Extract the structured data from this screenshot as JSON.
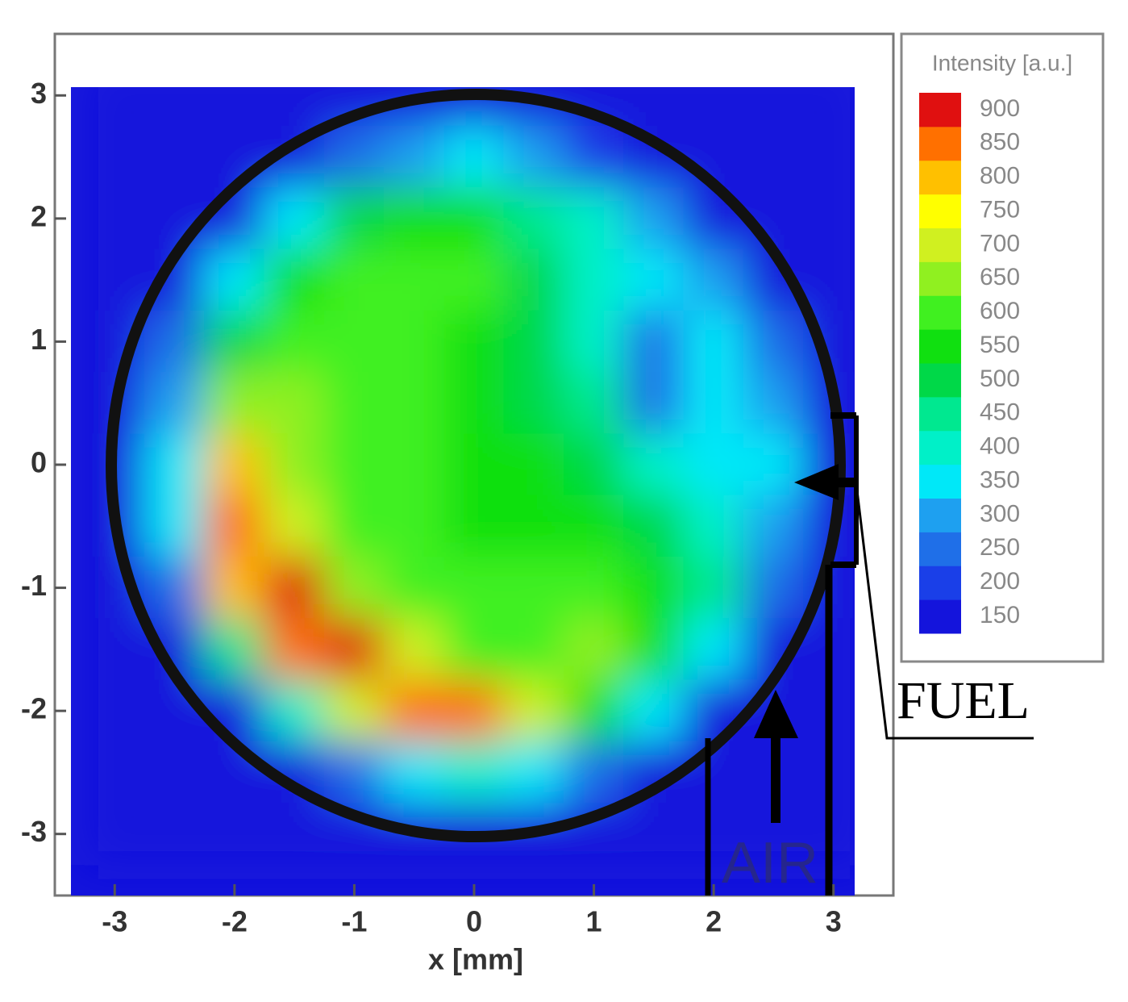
{
  "chart_data": {
    "type": "heatmap",
    "x_label": "x [mm]",
    "xlim": [
      -3.5,
      3.5
    ],
    "ylim": [
      -3.5,
      3.5
    ],
    "xticks": [
      -3,
      -2,
      -1,
      0,
      1,
      2,
      3
    ],
    "yticks": [
      -3,
      -2,
      -1,
      0,
      1,
      2,
      3
    ],
    "x": [
      -3,
      -2.5,
      -2,
      -1.5,
      -1,
      -0.5,
      0,
      0.5,
      1,
      1.5,
      2,
      2.5,
      3
    ],
    "y": [
      3,
      2.5,
      2,
      1.5,
      1,
      0.5,
      0,
      -0.5,
      -1,
      -1.5,
      -2,
      -2.5,
      -3
    ],
    "z": [
      [
        150,
        150,
        150,
        150,
        150,
        150,
        150,
        150,
        150,
        150,
        150,
        150,
        150
      ],
      [
        150,
        150,
        150,
        150,
        250,
        300,
        350,
        300,
        200,
        150,
        150,
        150,
        150
      ],
      [
        150,
        150,
        150,
        350,
        500,
        550,
        550,
        450,
        400,
        300,
        150,
        150,
        150
      ],
      [
        150,
        150,
        350,
        550,
        600,
        600,
        600,
        500,
        400,
        350,
        300,
        150,
        150
      ],
      [
        150,
        250,
        500,
        600,
        600,
        600,
        550,
        500,
        400,
        250,
        350,
        250,
        150
      ],
      [
        150,
        300,
        650,
        650,
        600,
        600,
        550,
        500,
        450,
        250,
        350,
        300,
        150
      ],
      [
        150,
        350,
        800,
        650,
        600,
        600,
        550,
        550,
        500,
        400,
        350,
        350,
        150
      ],
      [
        150,
        350,
        850,
        700,
        600,
        600,
        550,
        550,
        550,
        500,
        400,
        300,
        150
      ],
      [
        150,
        250,
        800,
        900,
        650,
        600,
        600,
        600,
        600,
        550,
        450,
        250,
        150
      ],
      [
        150,
        150,
        450,
        850,
        900,
        700,
        600,
        600,
        650,
        550,
        350,
        150,
        150
      ],
      [
        150,
        150,
        150,
        400,
        700,
        850,
        850,
        700,
        550,
        350,
        150,
        150,
        150
      ],
      [
        150,
        150,
        150,
        150,
        250,
        350,
        400,
        350,
        250,
        150,
        150,
        150,
        150
      ],
      [
        150,
        150,
        150,
        150,
        150,
        150,
        150,
        150,
        150,
        150,
        150,
        150,
        150
      ]
    ],
    "colorbar": {
      "title": "Intensity [a.u.]",
      "levels": [
        150,
        200,
        250,
        300,
        350,
        400,
        450,
        500,
        550,
        600,
        650,
        700,
        750,
        800,
        850,
        900
      ],
      "colors": [
        "#1414dc",
        "#1a3fe8",
        "#1f6fe8",
        "#1ea0f0",
        "#00e8f8",
        "#00f0c8",
        "#00e890",
        "#00d848",
        "#10e010",
        "#40f020",
        "#90f020",
        "#d0f020",
        "#ffff00",
        "#ffc000",
        "#ff7000",
        "#e01010"
      ]
    },
    "annotations": [
      "FUEL",
      "AIR"
    ]
  }
}
